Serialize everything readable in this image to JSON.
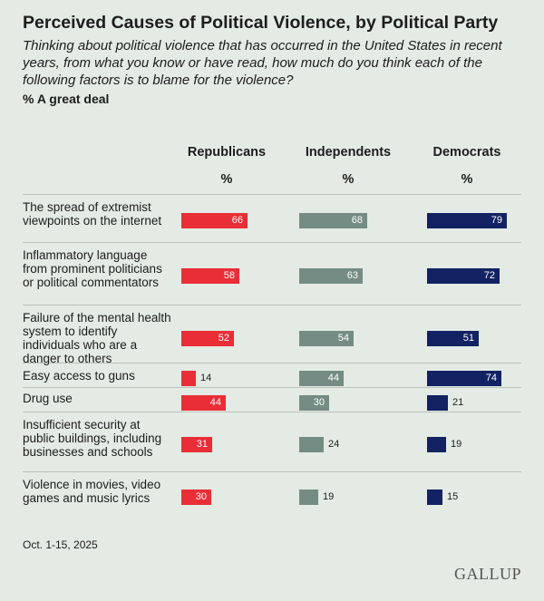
{
  "title": "Perceived Causes of Political Violence, by Political Party",
  "subtitle": "Thinking about political violence that has occurred in the United States in recent years, from what you know or have read, how much do you think each of the following factors is to blame for the violence?",
  "measure": "% A great deal",
  "unit": "%",
  "footnote": "Oct. 1-15, 2025",
  "logo": "GALLUP",
  "colors": {
    "Republicans": "#E92E38",
    "Independents": "#758C84",
    "Democrats": "#132262",
    "background": "#E3EBE4"
  },
  "chart_data": {
    "type": "bar",
    "orientation": "horizontal",
    "categories": [
      "The spread of extremist viewpoints on the internet",
      "Inflammatory language from prominent politicians or political commentators",
      "Failure of the mental health system to identify individuals who are a danger to others",
      "Easy access to guns",
      "Drug use",
      "Insufficient security at public buildings, including businesses and schools",
      "Violence in movies, video games and music lyrics"
    ],
    "series": [
      {
        "name": "Republicans",
        "values": [
          66,
          58,
          52,
          14,
          44,
          31,
          30
        ]
      },
      {
        "name": "Independents",
        "values": [
          68,
          63,
          54,
          44,
          30,
          24,
          19
        ]
      },
      {
        "name": "Democrats",
        "values": [
          79,
          72,
          51,
          74,
          21,
          19,
          15
        ]
      }
    ],
    "xlim": [
      0,
      100
    ],
    "grid": false,
    "legend": "column headers"
  }
}
